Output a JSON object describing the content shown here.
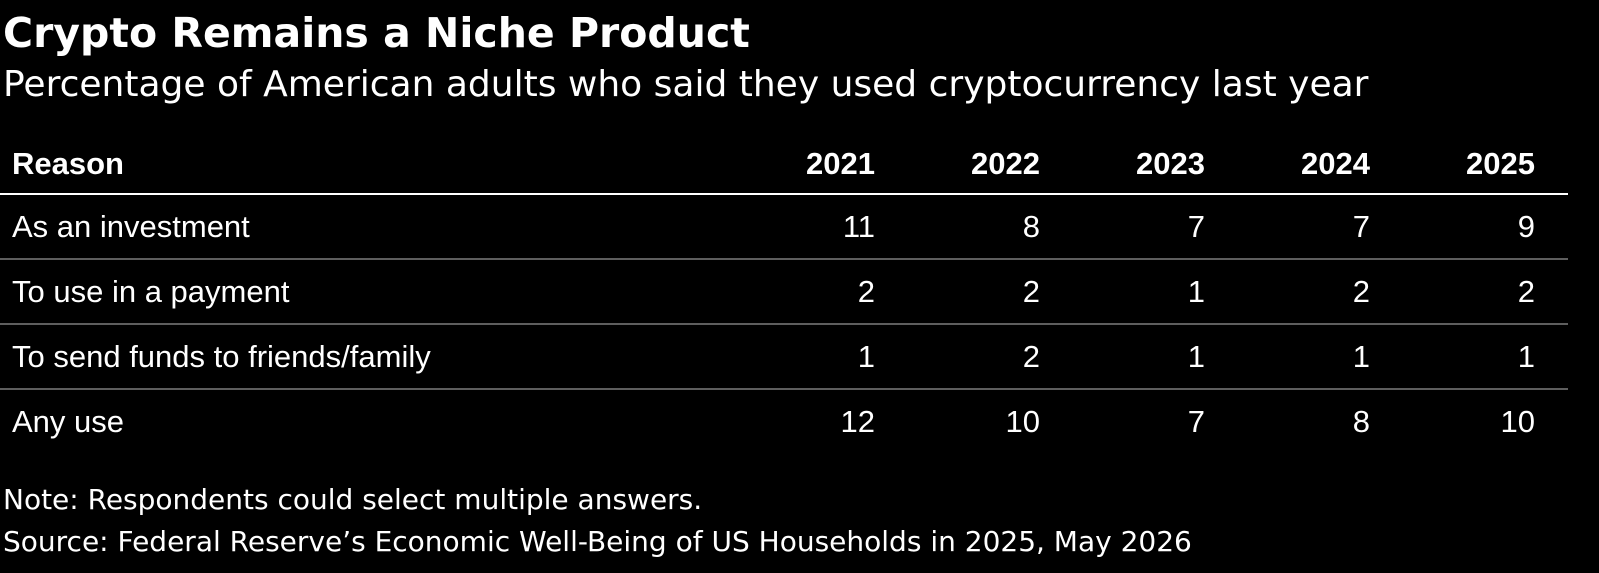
{
  "chart_data": {
    "type": "table",
    "title": "Crypto Remains a Niche Product",
    "subtitle": "Percentage of American adults who said they used cryptocurrency last year",
    "columns": [
      "Reason",
      "2021",
      "2022",
      "2023",
      "2024",
      "2025"
    ],
    "rows": [
      {
        "label": "As an investment",
        "values": [
          "11",
          "8",
          "7",
          "7",
          "9"
        ]
      },
      {
        "label": "To use in a payment",
        "values": [
          "2",
          "2",
          "1",
          "2",
          "2"
        ]
      },
      {
        "label": "To send funds to friends/family",
        "values": [
          "1",
          "2",
          "1",
          "1",
          "1"
        ]
      },
      {
        "label": "Any use",
        "values": [
          "12",
          "10",
          "7",
          "8",
          "10"
        ]
      }
    ],
    "note": "Note: Respondents could select multiple answers.",
    "source": "Source: Federal Reserve’s Economic Well-Being of US Households in 2025, May 2026"
  },
  "colors": {
    "background": "#000000",
    "text": "#ffffff",
    "header_rule": "#ffffff",
    "row_rule": "#5e5e5e"
  }
}
